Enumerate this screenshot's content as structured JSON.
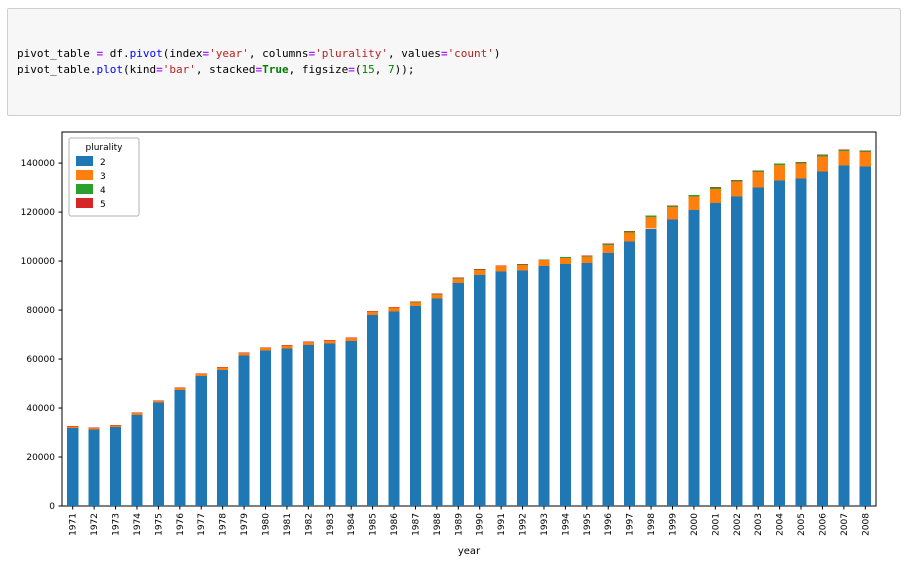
{
  "code_cell": {
    "lines": [
      {
        "tokens": [
          {
            "t": "pivot_table ",
            "c": "pl"
          },
          {
            "t": "=",
            "c": "op"
          },
          {
            "t": " df",
            "c": "pl"
          },
          {
            "t": ".",
            "c": "pl"
          },
          {
            "t": "pivot",
            "c": "prop"
          },
          {
            "t": "(index",
            "c": "pl"
          },
          {
            "t": "=",
            "c": "op"
          },
          {
            "t": "'year'",
            "c": "str"
          },
          {
            "t": ", columns",
            "c": "pl"
          },
          {
            "t": "=",
            "c": "op"
          },
          {
            "t": "'plurality'",
            "c": "str"
          },
          {
            "t": ", values",
            "c": "pl"
          },
          {
            "t": "=",
            "c": "op"
          },
          {
            "t": "'count'",
            "c": "str"
          },
          {
            "t": ")",
            "c": "pl"
          }
        ]
      },
      {
        "tokens": [
          {
            "t": "pivot_table",
            "c": "pl"
          },
          {
            "t": ".",
            "c": "pl"
          },
          {
            "t": "plot",
            "c": "prop"
          },
          {
            "t": "(kind",
            "c": "pl"
          },
          {
            "t": "=",
            "c": "op"
          },
          {
            "t": "'bar'",
            "c": "str"
          },
          {
            "t": ", stacked",
            "c": "pl"
          },
          {
            "t": "=",
            "c": "op"
          },
          {
            "t": "True",
            "c": "kw"
          },
          {
            "t": ", figsize",
            "c": "pl"
          },
          {
            "t": "=",
            "c": "op"
          },
          {
            "t": "(",
            "c": "pl"
          },
          {
            "t": "15",
            "c": "num"
          },
          {
            "t": ", ",
            "c": "pl"
          },
          {
            "t": "7",
            "c": "num"
          },
          {
            "t": "));",
            "c": "pl"
          }
        ]
      }
    ]
  },
  "chart_data": {
    "type": "bar",
    "stacked": true,
    "title": "",
    "xlabel": "year",
    "ylabel": "",
    "legend_title": "plurality",
    "legend_position": "upper left",
    "grid": false,
    "ylim": [
      0,
      152700
    ],
    "yticks": [
      0,
      20000,
      40000,
      60000,
      80000,
      100000,
      120000,
      140000
    ],
    "categories": [
      1971,
      1972,
      1973,
      1974,
      1975,
      1976,
      1977,
      1978,
      1979,
      1980,
      1981,
      1982,
      1983,
      1984,
      1985,
      1986,
      1987,
      1988,
      1989,
      1990,
      1991,
      1992,
      1993,
      1994,
      1995,
      1996,
      1997,
      1998,
      1999,
      2000,
      2001,
      2002,
      2003,
      2004,
      2005,
      2006,
      2007,
      2008
    ],
    "series": [
      {
        "name": "2",
        "color": "#1f77b4",
        "values": [
          31800,
          31300,
          32300,
          37200,
          42200,
          47300,
          53100,
          55600,
          61500,
          63400,
          64400,
          65800,
          66300,
          67300,
          78000,
          79500,
          81600,
          84800,
          91100,
          94400,
          95800,
          96200,
          98000,
          98900,
          99200,
          103300,
          107900,
          113200,
          116900,
          120900,
          123700,
          126400,
          130000,
          132900,
          133700,
          136600,
          139000,
          138700
        ]
      },
      {
        "name": "3",
        "color": "#ff7f0e",
        "values": [
          600,
          620,
          630,
          700,
          720,
          800,
          820,
          900,
          1000,
          1050,
          1100,
          1180,
          1260,
          1290,
          1380,
          1460,
          1550,
          1650,
          1800,
          2000,
          2100,
          2200,
          2350,
          2450,
          2600,
          3300,
          3700,
          4700,
          5100,
          5500,
          5800,
          6000,
          6300,
          6400,
          6100,
          6200,
          6000,
          5900
        ]
      },
      {
        "name": "4",
        "color": "#2ca02c",
        "values": [
          30,
          30,
          32,
          35,
          38,
          42,
          45,
          50,
          55,
          60,
          65,
          70,
          78,
          85,
          95,
          105,
          115,
          130,
          150,
          160,
          185,
          210,
          230,
          250,
          280,
          430,
          480,
          620,
          580,
          510,
          500,
          560,
          470,
          440,
          420,
          460,
          380,
          360
        ]
      },
      {
        "name": "5",
        "color": "#d62728",
        "values": [
          8,
          8,
          9,
          10,
          10,
          12,
          12,
          14,
          15,
          16,
          18,
          20,
          22,
          24,
          26,
          28,
          30,
          35,
          40,
          45,
          50,
          55,
          60,
          65,
          70,
          80,
          85,
          90,
          80,
          77,
          85,
          69,
          85,
          86,
          68,
          67,
          91,
          79
        ]
      }
    ]
  }
}
